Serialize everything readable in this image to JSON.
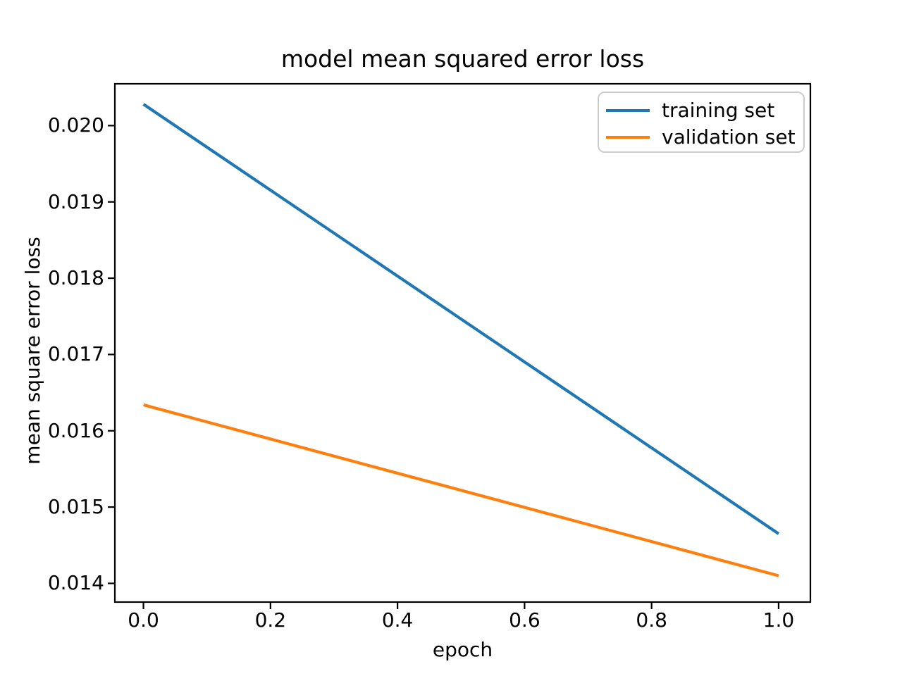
{
  "chart_data": {
    "type": "line",
    "title": "model mean squared error loss",
    "xlabel": "epoch",
    "ylabel": "mean square error loss",
    "x": [
      0.0,
      1.0
    ],
    "series": [
      {
        "name": "training set",
        "color": "#1f77b4",
        "values": [
          0.02028,
          0.01465
        ]
      },
      {
        "name": "validation set",
        "color": "#ff7f0e",
        "values": [
          0.01634,
          0.0141
        ]
      }
    ],
    "xlim": [
      -0.045,
      1.05
    ],
    "ylim": [
      0.013755,
      0.020548
    ],
    "xticks": [
      0.0,
      0.2,
      0.4,
      0.6,
      0.8,
      1.0
    ],
    "xtick_labels": [
      "0.0",
      "0.2",
      "0.4",
      "0.6",
      "0.8",
      "1.0"
    ],
    "yticks": [
      0.014,
      0.015,
      0.016,
      0.017,
      0.018,
      0.019,
      0.02
    ],
    "ytick_labels": [
      "0.014",
      "0.015",
      "0.016",
      "0.017",
      "0.018",
      "0.019",
      "0.020"
    ],
    "legend": {
      "position": "upper right",
      "entries": [
        "training set",
        "validation set"
      ]
    },
    "grid": false,
    "axis_color": "#000000",
    "background": "#ffffff"
  }
}
